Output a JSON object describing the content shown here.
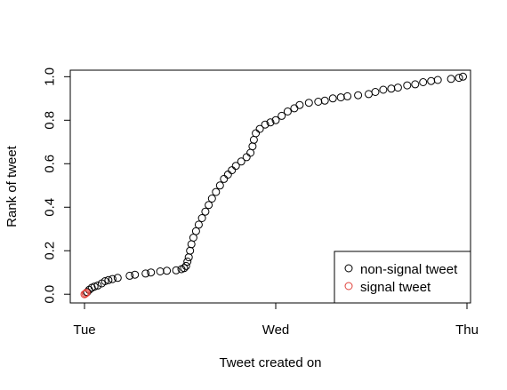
{
  "chart_data": {
    "type": "scatter",
    "xlabel": "Tweet created on",
    "ylabel": "Rank of tweet",
    "x_axis": {
      "type": "time-days",
      "range": [
        "2024-01-02",
        "2024-01-04"
      ],
      "ticks": [
        {
          "value": "2024-01-02",
          "label": "Tue"
        },
        {
          "value": "2024-01-03",
          "label": "Wed"
        },
        {
          "value": "2024-01-04",
          "label": "Thu"
        }
      ]
    },
    "y_axis": {
      "range": [
        -0.04,
        1.03
      ],
      "ticks": [
        {
          "value": 0.0,
          "label": "0.0"
        },
        {
          "value": 0.2,
          "label": "0.2"
        },
        {
          "value": 0.4,
          "label": "0.4"
        },
        {
          "value": 0.6,
          "label": "0.6"
        },
        {
          "value": 0.8,
          "label": "0.8"
        },
        {
          "value": 1.0,
          "label": "1.0"
        }
      ]
    },
    "grid": false,
    "legend_position": "bottom-right",
    "series": [
      {
        "name": "non-signal tweet",
        "color": "#000000",
        "marker": "open-circle",
        "points": [
          [
            "2024-01-02T00:20",
            0.01
          ],
          [
            "2024-01-02T00:35",
            0.02
          ],
          [
            "2024-01-02T00:55",
            0.03
          ],
          [
            "2024-01-02T01:15",
            0.035
          ],
          [
            "2024-01-02T01:40",
            0.04
          ],
          [
            "2024-01-02T02:10",
            0.05
          ],
          [
            "2024-01-02T02:35",
            0.06
          ],
          [
            "2024-01-02T03:00",
            0.065
          ],
          [
            "2024-01-02T03:30",
            0.07
          ],
          [
            "2024-01-02T04:10",
            0.075
          ],
          [
            "2024-01-02T05:40",
            0.085
          ],
          [
            "2024-01-02T06:20",
            0.09
          ],
          [
            "2024-01-02T07:40",
            0.095
          ],
          [
            "2024-01-02T08:20",
            0.1
          ],
          [
            "2024-01-02T09:30",
            0.105
          ],
          [
            "2024-01-02T10:20",
            0.108
          ],
          [
            "2024-01-02T11:30",
            0.11
          ],
          [
            "2024-01-02T12:10",
            0.115
          ],
          [
            "2024-01-02T12:30",
            0.12
          ],
          [
            "2024-01-02T12:45",
            0.13
          ],
          [
            "2024-01-02T12:55",
            0.15
          ],
          [
            "2024-01-02T13:05",
            0.17
          ],
          [
            "2024-01-02T13:15",
            0.2
          ],
          [
            "2024-01-02T13:25",
            0.23
          ],
          [
            "2024-01-02T13:40",
            0.26
          ],
          [
            "2024-01-02T14:00",
            0.29
          ],
          [
            "2024-01-02T14:20",
            0.32
          ],
          [
            "2024-01-02T14:45",
            0.35
          ],
          [
            "2024-01-02T15:10",
            0.38
          ],
          [
            "2024-01-02T15:35",
            0.41
          ],
          [
            "2024-01-02T16:00",
            0.44
          ],
          [
            "2024-01-02T16:30",
            0.47
          ],
          [
            "2024-01-02T17:00",
            0.5
          ],
          [
            "2024-01-02T17:30",
            0.53
          ],
          [
            "2024-01-02T18:00",
            0.55
          ],
          [
            "2024-01-02T18:30",
            0.57
          ],
          [
            "2024-01-02T19:00",
            0.59
          ],
          [
            "2024-01-02T19:40",
            0.61
          ],
          [
            "2024-01-02T20:20",
            0.63
          ],
          [
            "2024-01-02T20:50",
            0.65
          ],
          [
            "2024-01-02T21:05",
            0.68
          ],
          [
            "2024-01-02T21:15",
            0.71
          ],
          [
            "2024-01-02T21:30",
            0.74
          ],
          [
            "2024-01-02T22:00",
            0.76
          ],
          [
            "2024-01-02T22:40",
            0.78
          ],
          [
            "2024-01-02T23:20",
            0.79
          ],
          [
            "2024-01-03T00:00",
            0.8
          ],
          [
            "2024-01-03T00:45",
            0.82
          ],
          [
            "2024-01-03T01:30",
            0.84
          ],
          [
            "2024-01-03T02:20",
            0.855
          ],
          [
            "2024-01-03T03:00",
            0.87
          ],
          [
            "2024-01-03T04:10",
            0.88
          ],
          [
            "2024-01-03T05:20",
            0.885
          ],
          [
            "2024-01-03T06:10",
            0.89
          ],
          [
            "2024-01-03T07:10",
            0.9
          ],
          [
            "2024-01-03T08:10",
            0.905
          ],
          [
            "2024-01-03T09:00",
            0.91
          ],
          [
            "2024-01-03T10:20",
            0.915
          ],
          [
            "2024-01-03T11:40",
            0.92
          ],
          [
            "2024-01-03T12:30",
            0.93
          ],
          [
            "2024-01-03T13:30",
            0.94
          ],
          [
            "2024-01-03T14:30",
            0.945
          ],
          [
            "2024-01-03T15:20",
            0.95
          ],
          [
            "2024-01-03T16:30",
            0.96
          ],
          [
            "2024-01-03T17:30",
            0.965
          ],
          [
            "2024-01-03T18:30",
            0.975
          ],
          [
            "2024-01-03T19:30",
            0.98
          ],
          [
            "2024-01-03T20:20",
            0.985
          ],
          [
            "2024-01-03T22:00",
            0.99
          ],
          [
            "2024-01-03T23:00",
            0.995
          ],
          [
            "2024-01-03T23:30",
            1.0
          ]
        ]
      },
      {
        "name": "signal tweet",
        "color": "#e0413a",
        "marker": "open-circle",
        "points": [
          [
            "2024-01-02T00:00",
            0.0
          ],
          [
            "2024-01-02T00:08",
            0.003
          ],
          [
            "2024-01-02T00:15",
            0.007
          ]
        ]
      }
    ]
  }
}
